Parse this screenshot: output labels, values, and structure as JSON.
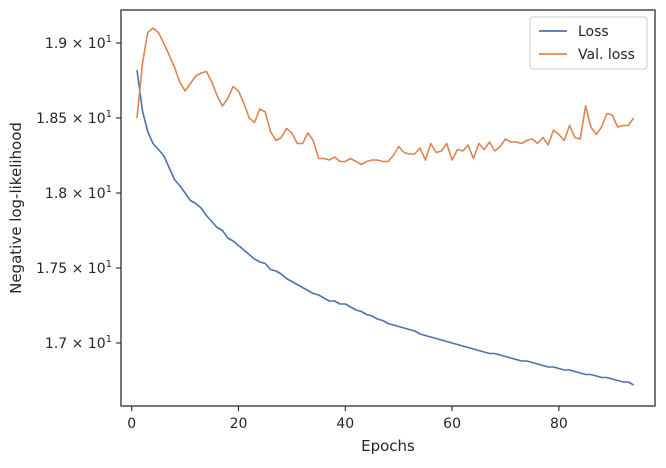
{
  "chart_data": {
    "type": "line",
    "xlabel": "Epochs",
    "ylabel": "Negative log-likelihood",
    "xlim": [
      -2,
      98
    ],
    "ylim": [
      16.58,
      19.22
    ],
    "x_ticks": [
      0,
      20,
      40,
      60,
      80
    ],
    "x_tick_labels": [
      "0",
      "20",
      "40",
      "60",
      "80"
    ],
    "y_ticks": [
      17.0,
      17.5,
      18.0,
      18.5,
      19.0
    ],
    "y_tick_labels": [
      {
        "mant": "1.7",
        "exp": "1"
      },
      {
        "mant": "1.75",
        "exp": "1"
      },
      {
        "mant": "1.8",
        "exp": "1"
      },
      {
        "mant": "1.85",
        "exp": "1"
      },
      {
        "mant": "1.9",
        "exp": "1"
      }
    ],
    "legend_position": "top-right",
    "grid": false,
    "series": [
      {
        "name": "Loss",
        "color": "#4c72b0",
        "x": [
          1,
          2,
          3,
          4,
          5,
          6,
          7,
          8,
          9,
          10,
          11,
          12,
          13,
          14,
          15,
          16,
          17,
          18,
          19,
          20,
          21,
          22,
          23,
          24,
          25,
          26,
          27,
          28,
          29,
          30,
          31,
          32,
          33,
          34,
          35,
          36,
          37,
          38,
          39,
          40,
          41,
          42,
          43,
          44,
          45,
          46,
          47,
          48,
          49,
          50,
          51,
          52,
          53,
          54,
          55,
          56,
          57,
          58,
          59,
          60,
          61,
          62,
          63,
          64,
          65,
          66,
          67,
          68,
          69,
          70,
          71,
          72,
          73,
          74,
          75,
          76,
          77,
          78,
          79,
          80,
          81,
          82,
          83,
          84,
          85,
          86,
          87,
          88,
          89,
          90,
          91,
          92,
          93,
          94
        ],
        "values": [
          18.82,
          18.55,
          18.41,
          18.33,
          18.29,
          18.25,
          18.17,
          18.09,
          18.05,
          18.0,
          17.95,
          17.93,
          17.9,
          17.85,
          17.81,
          17.77,
          17.75,
          17.7,
          17.68,
          17.65,
          17.62,
          17.59,
          17.56,
          17.54,
          17.53,
          17.49,
          17.48,
          17.46,
          17.43,
          17.41,
          17.39,
          17.37,
          17.35,
          17.33,
          17.32,
          17.3,
          17.28,
          17.28,
          17.26,
          17.26,
          17.24,
          17.22,
          17.21,
          17.19,
          17.18,
          17.16,
          17.15,
          17.13,
          17.12,
          17.11,
          17.1,
          17.09,
          17.08,
          17.06,
          17.05,
          17.04,
          17.03,
          17.02,
          17.01,
          17.0,
          16.99,
          16.98,
          16.97,
          16.96,
          16.95,
          16.94,
          16.93,
          16.93,
          16.92,
          16.91,
          16.9,
          16.89,
          16.88,
          16.88,
          16.87,
          16.86,
          16.85,
          16.84,
          16.84,
          16.83,
          16.82,
          16.82,
          16.81,
          16.8,
          16.79,
          16.79,
          16.78,
          16.77,
          16.77,
          16.76,
          16.75,
          16.74,
          16.74,
          16.72
        ]
      },
      {
        "name": "Val. loss",
        "color": "#dd8452",
        "x": [
          1,
          2,
          3,
          4,
          5,
          6,
          7,
          8,
          9,
          10,
          11,
          12,
          13,
          14,
          15,
          16,
          17,
          18,
          19,
          20,
          21,
          22,
          23,
          24,
          25,
          26,
          27,
          28,
          29,
          30,
          31,
          32,
          33,
          34,
          35,
          36,
          37,
          38,
          39,
          40,
          41,
          42,
          43,
          44,
          45,
          46,
          47,
          48,
          49,
          50,
          51,
          52,
          53,
          54,
          55,
          56,
          57,
          58,
          59,
          60,
          61,
          62,
          63,
          64,
          65,
          66,
          67,
          68,
          69,
          70,
          71,
          72,
          73,
          74,
          75,
          76,
          77,
          78,
          79,
          80,
          81,
          82,
          83,
          84,
          85,
          86,
          87,
          88,
          89,
          90,
          91,
          92,
          93,
          94
        ],
        "values": [
          18.5,
          18.86,
          19.07,
          19.1,
          19.07,
          19.0,
          18.92,
          18.84,
          18.74,
          18.68,
          18.73,
          18.78,
          18.8,
          18.81,
          18.74,
          18.65,
          18.58,
          18.63,
          18.71,
          18.68,
          18.6,
          18.5,
          18.47,
          18.56,
          18.54,
          18.41,
          18.35,
          18.37,
          18.43,
          18.4,
          18.33,
          18.33,
          18.4,
          18.35,
          18.23,
          18.23,
          18.22,
          18.24,
          18.21,
          18.21,
          18.23,
          18.21,
          18.19,
          18.21,
          18.22,
          18.22,
          18.21,
          18.21,
          18.25,
          18.31,
          18.27,
          18.26,
          18.26,
          18.3,
          18.22,
          18.33,
          18.27,
          18.28,
          18.33,
          18.22,
          18.29,
          18.28,
          18.32,
          18.23,
          18.33,
          18.29,
          18.34,
          18.28,
          18.31,
          18.36,
          18.34,
          18.34,
          18.33,
          18.35,
          18.36,
          18.33,
          18.37,
          18.32,
          18.42,
          18.39,
          18.35,
          18.45,
          18.37,
          18.36,
          18.58,
          18.44,
          18.39,
          18.44,
          18.53,
          18.52,
          18.44,
          18.45,
          18.45,
          18.5
        ]
      }
    ]
  }
}
